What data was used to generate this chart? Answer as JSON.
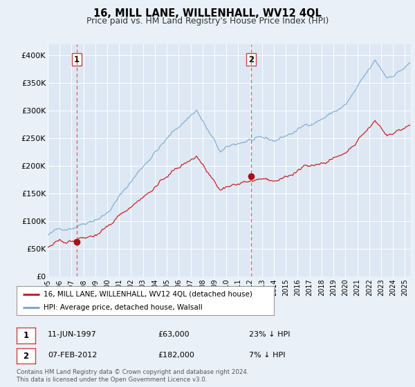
{
  "title": "16, MILL LANE, WILLENHALL, WV12 4QL",
  "subtitle": "Price paid vs. HM Land Registry's House Price Index (HPI)",
  "background_color": "#eaf0f8",
  "plot_bg_color": "#dde8f4",
  "ylim": [
    0,
    420000
  ],
  "yticks": [
    0,
    50000,
    100000,
    150000,
    200000,
    250000,
    300000,
    350000,
    400000
  ],
  "ytick_labels": [
    "£0",
    "£50K",
    "£100K",
    "£150K",
    "£200K",
    "£250K",
    "£300K",
    "£350K",
    "£400K"
  ],
  "xmin_year": 1995.0,
  "xmax_year": 2025.5,
  "xticks": [
    1995,
    1996,
    1997,
    1998,
    1999,
    2000,
    2001,
    2002,
    2003,
    2004,
    2005,
    2006,
    2007,
    2008,
    2009,
    2010,
    2011,
    2012,
    2013,
    2014,
    2015,
    2016,
    2017,
    2018,
    2019,
    2020,
    2021,
    2022,
    2023,
    2024,
    2025
  ],
  "sale1_year": 1997.44,
  "sale1_price": 63000,
  "sale1_label": "1",
  "sale2_year": 2012.1,
  "sale2_price": 182000,
  "sale2_label": "2",
  "legend_line1": "16, MILL LANE, WILLENHALL, WV12 4QL (detached house)",
  "legend_line2": "HPI: Average price, detached house, Walsall",
  "annotation1_date": "11-JUN-1997",
  "annotation1_price": "£63,000",
  "annotation1_pct": "23% ↓ HPI",
  "annotation2_date": "07-FEB-2012",
  "annotation2_price": "£182,000",
  "annotation2_pct": "7% ↓ HPI",
  "footnote": "Contains HM Land Registry data © Crown copyright and database right 2024.\nThis data is licensed under the Open Government Licence v3.0.",
  "hpi_color": "#7aaad0",
  "price_color": "#cc2222",
  "sale_marker_color": "#aa1111",
  "vline_color": "#cc4444",
  "box_border_color": "#cc4444"
}
